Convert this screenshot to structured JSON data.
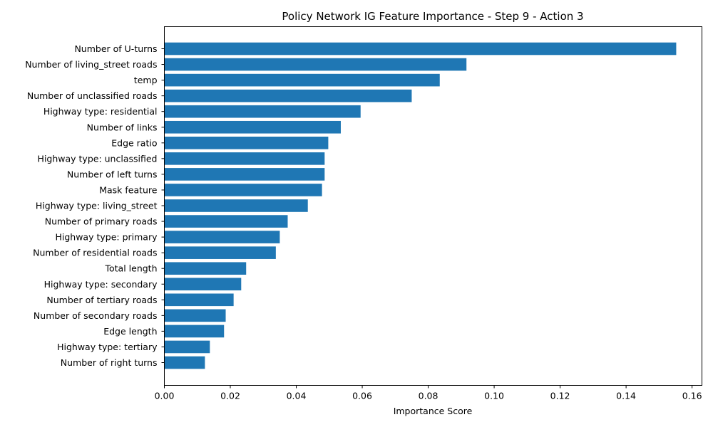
{
  "chart_data": {
    "type": "bar",
    "orientation": "horizontal",
    "title": "Policy Network IG Feature Importance - Step 9 - Action 3",
    "xlabel": "Importance Score",
    "ylabel": "",
    "xlim": [
      0,
      0.163
    ],
    "xticks": [
      "0.00",
      "0.02",
      "0.04",
      "0.06",
      "0.08",
      "0.10",
      "0.12",
      "0.14",
      "0.16"
    ],
    "grid": false,
    "bar_color": "#1f77b4",
    "categories": [
      "Number of U-turns",
      "Number of living_street roads",
      "temp",
      "Number of unclassified roads",
      "Highway type: residential",
      "Number of links",
      "Edge ratio",
      "Highway type: unclassified",
      "Number of left turns",
      "Mask feature",
      "Highway type: living_street",
      "Number of primary roads",
      "Highway type: primary",
      "Number of residential roads",
      "Total length",
      "Highway type: secondary",
      "Number of tertiary roads",
      "Number of secondary roads",
      "Edge length",
      "Highway type: tertiary",
      "Number of right turns"
    ],
    "values": [
      0.1552,
      0.0916,
      0.0835,
      0.075,
      0.0595,
      0.0535,
      0.0497,
      0.0486,
      0.0486,
      0.0478,
      0.0435,
      0.0374,
      0.035,
      0.0338,
      0.0248,
      0.0233,
      0.021,
      0.0186,
      0.0181,
      0.0138,
      0.0123
    ]
  }
}
